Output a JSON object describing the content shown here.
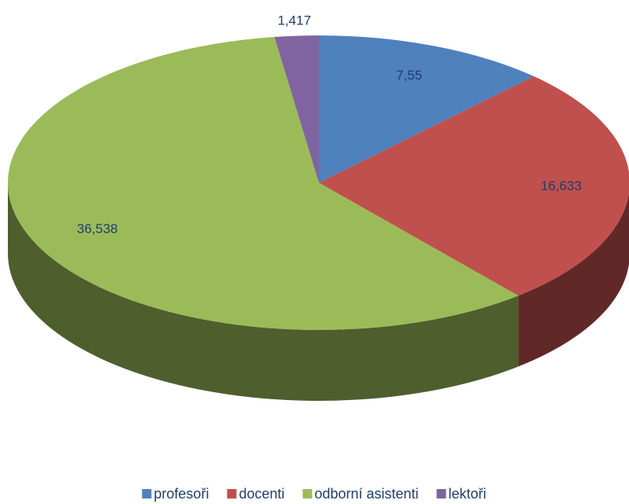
{
  "chart_data": {
    "type": "pie",
    "categories": [
      "profesoři",
      "docenti",
      "odborní asistenti",
      "lektoři"
    ],
    "values": [
      7.55,
      16.633,
      36.538,
      1.417
    ],
    "value_labels": [
      "7,55",
      "16,633",
      "36,538",
      "1,417"
    ],
    "colors": [
      "#4f81bd",
      "#c0504d",
      "#9bbb59",
      "#8064a2"
    ],
    "legend": "bottom"
  }
}
